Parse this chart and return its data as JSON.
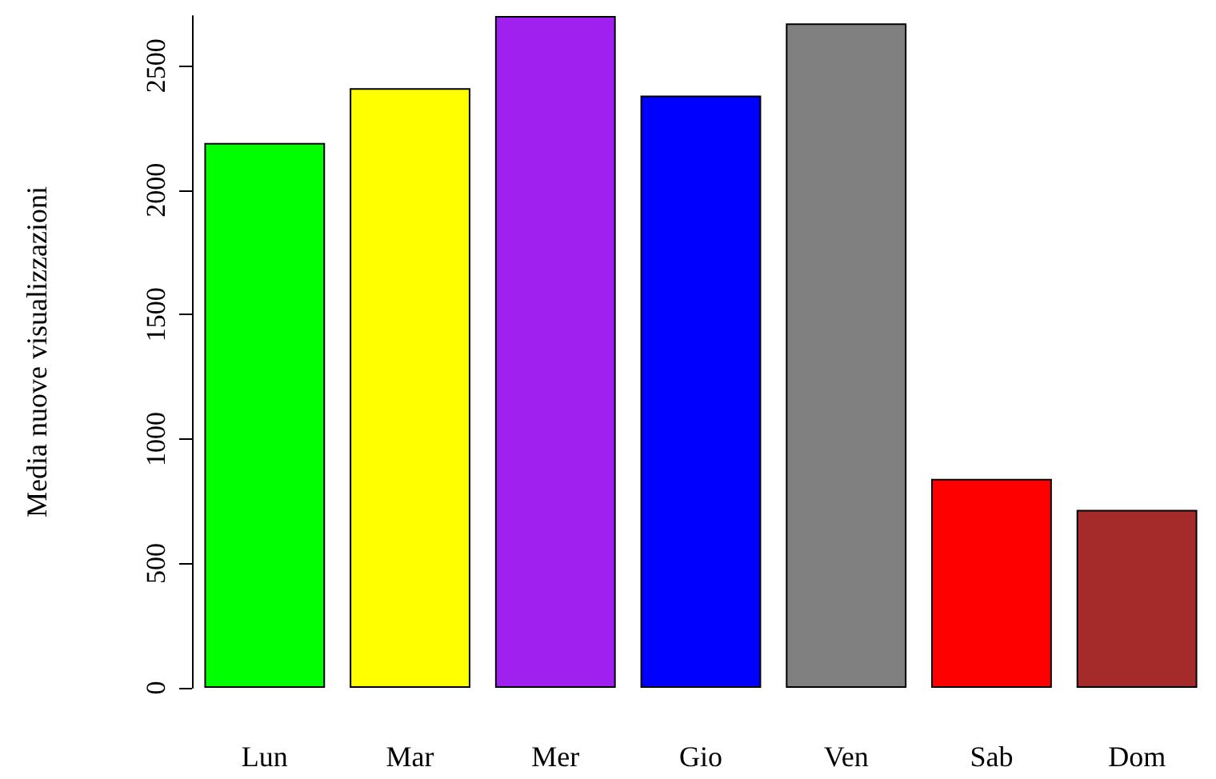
{
  "chart_data": {
    "type": "bar",
    "ylabel": "Media nuove visualizzazioni",
    "categories": [
      "Lun",
      "Mar",
      "Mer",
      "Gio",
      "Ven",
      "Sab",
      "Dom"
    ],
    "values": [
      2190,
      2410,
      2700,
      2380,
      2670,
      840,
      715
    ],
    "colors": [
      "#00ff00",
      "#ffff00",
      "#a020f0",
      "#0000ff",
      "#808080",
      "#ff0000",
      "#a52a2a"
    ],
    "ylim": [
      0,
      2700
    ],
    "yticks": [
      0,
      500,
      1000,
      1500,
      2000,
      2500
    ],
    "grid": false
  }
}
